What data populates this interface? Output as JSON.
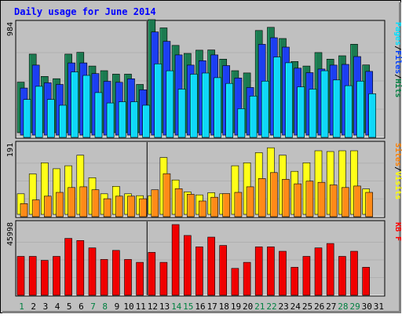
{
  "chart_data": {
    "type": "bar",
    "title": "Daily usage for June 2014",
    "days": [
      "1",
      "2",
      "3",
      "4",
      "5",
      "6",
      "7",
      "8",
      "9",
      "10",
      "11",
      "12",
      "13",
      "14",
      "15",
      "16",
      "17",
      "18",
      "19",
      "20",
      "21",
      "22",
      "23",
      "24",
      "25",
      "26",
      "27",
      "28",
      "29",
      "30",
      "31"
    ],
    "weekend_days": [
      "1",
      "7",
      "8",
      "14",
      "15",
      "21",
      "22",
      "28",
      "29"
    ],
    "panels": [
      {
        "id": "hits-panel",
        "ymax_label": "984",
        "ymax": 984,
        "legend": [
          {
            "label": "Pages",
            "color": "#00e0ff"
          },
          {
            "label": "/",
            "color": "#000000"
          },
          {
            "label": "Files",
            "color": "#0040ff"
          },
          {
            "label": "/",
            "color": "#000000"
          },
          {
            "label": "Hits",
            "color": "#008040"
          }
        ],
        "series": [
          {
            "name": "Hits",
            "color": "#1c7a50",
            "values": [
              440,
              684,
              490,
              470,
              684,
              700,
              580,
              540,
              510,
              510,
              420,
              984,
              912,
              760,
              690,
              718,
              720,
              640,
              540,
              520,
              890,
              917,
              820,
              620,
              580,
              698,
              640,
              670,
              770,
              590,
              null
            ]
          },
          {
            "name": "Files",
            "color": "#1c3ef2",
            "values": [
              409,
              609,
              455,
              441,
              628,
              628,
              535,
              468,
              459,
              490,
              394,
              897,
              816,
              698,
              609,
              647,
              698,
              605,
              497,
              414,
              790,
              847,
              765,
              582,
              543,
              575,
              609,
              615,
              683,
              554,
              null
            ]
          },
          {
            "name": "Pages",
            "color": "#10d8f8",
            "values": [
              330,
              445,
              330,
              280,
              570,
              540,
              390,
              300,
              310,
              310,
              280,
              640,
              580,
              420,
              550,
              560,
              520,
              470,
              250,
              360,
              490,
              700,
              650,
              440,
              420,
              580,
              500,
              450,
              490,
              380,
              null
            ]
          }
        ]
      },
      {
        "id": "visits-panel",
        "ymax_label": "191",
        "ymax": 191,
        "legend": [
          {
            "label": "Sites",
            "color": "#ff8000"
          },
          {
            "label": "/",
            "color": "#000000"
          },
          {
            "label": "Visits",
            "color": "#ffff00"
          }
        ],
        "series": [
          {
            "name": "Visits",
            "color": "#ffff18",
            "values": [
              55,
              108,
              138,
              122,
              130,
              158,
              98,
              55,
              75,
              55,
              50,
              50,
              152,
              92,
              60,
              52,
              58,
              55,
              130,
              138,
              165,
              178,
              158,
              115,
              138,
              170,
              168,
              170,
              170,
              68,
              null
            ]
          },
          {
            "name": "Sites",
            "color": "#ff8a18",
            "values": [
              35,
              45,
              55,
              65,
              78,
              80,
              72,
              48,
              55,
              55,
              48,
              72,
              115,
              75,
              60,
              42,
              52,
              62,
              65,
              80,
              102,
              118,
              100,
              88,
              95,
              92,
              85,
              78,
              82,
              65,
              null
            ]
          }
        ]
      },
      {
        "id": "kbytes-panel",
        "ymax_label": "45998",
        "ymax": 45998,
        "legend": [
          {
            "label": "KB F",
            "color": "#ff0000"
          }
        ],
        "series": [
          {
            "name": "KB F",
            "color": "#f00000",
            "values": [
              25300,
              25300,
              22700,
              25300,
              37000,
              35600,
              30800,
              23300,
              29200,
              23300,
              21400,
              27900,
              21400,
              45998,
              38900,
              31500,
              37800,
              32400,
              17500,
              21400,
              31500,
              31500,
              28600,
              18200,
              25300,
              30800,
              33700,
              25300,
              28600,
              18200,
              null
            ]
          }
        ]
      }
    ]
  }
}
